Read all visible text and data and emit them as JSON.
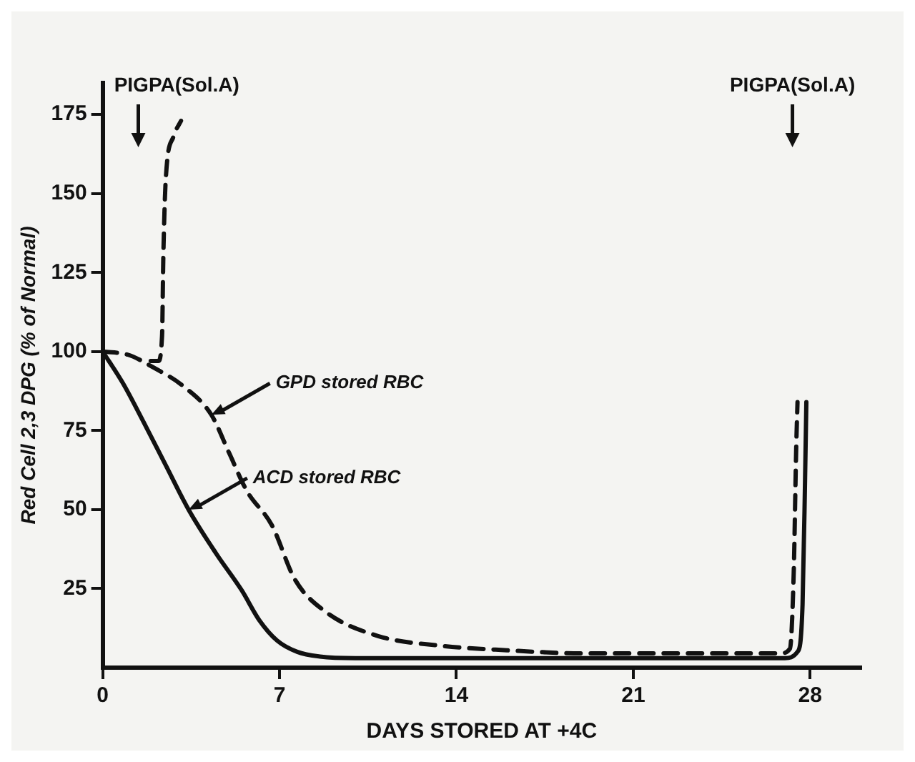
{
  "chart_data": {
    "type": "line",
    "xlabel": "DAYS STORED AT +4C",
    "ylabel": "Red Cell 2,3 DPG (% of Normal)",
    "xlim": [
      0,
      30
    ],
    "xticks": [
      0,
      7,
      14,
      21,
      28
    ],
    "ylim": [
      0,
      185
    ],
    "yticks": [
      25,
      50,
      75,
      100,
      125,
      150,
      175
    ],
    "grid": false,
    "legend": false,
    "marker": "none",
    "series": [
      {
        "color": "#111111",
        "line_style": "solid",
        "x": [
          0,
          0.8,
          1.6,
          2.5,
          3.4,
          4.5,
          5.5,
          6.2,
          6.9,
          7.7,
          8.6,
          10,
          14,
          21,
          27,
          27.5,
          27.7,
          27.8,
          27.85
        ],
        "values": [
          100,
          90,
          78,
          64,
          50,
          36,
          24.5,
          15,
          8.6,
          5,
          3.5,
          3,
          3,
          3,
          3,
          5,
          20,
          60,
          84
        ]
      },
      {
        "color": "#111111",
        "line_style": "dashed",
        "x": [
          0,
          1,
          2,
          3.2,
          4.3,
          5,
          5.7,
          6.7,
          7.6,
          8.8,
          10.9,
          13.3,
          16,
          19.1,
          23,
          26.8,
          27.2,
          27.35,
          27.45,
          27.5
        ],
        "values": [
          100,
          99,
          95,
          89,
          80,
          68,
          56,
          45,
          28,
          17.8,
          10,
          7,
          5.5,
          4.5,
          4.5,
          4.5,
          6,
          30,
          70,
          84
        ]
      },
      {
        "color": "#111111",
        "line_style": "dashed",
        "x": [
          1.9,
          2.2,
          2.35,
          2.4,
          2.5,
          2.8,
          3.1
        ],
        "values": [
          97,
          97,
          105,
          130,
          155,
          168,
          173
        ]
      }
    ],
    "annotations": [
      "PIGPA(Sol.A)",
      "PIGPA(Sol.A)",
      {
        "text": "GPD stored RBC",
        "x": 4.3,
        "y": 80
      },
      {
        "text": "ACD stored RBC",
        "x": 3.4,
        "y": 50
      }
    ]
  }
}
